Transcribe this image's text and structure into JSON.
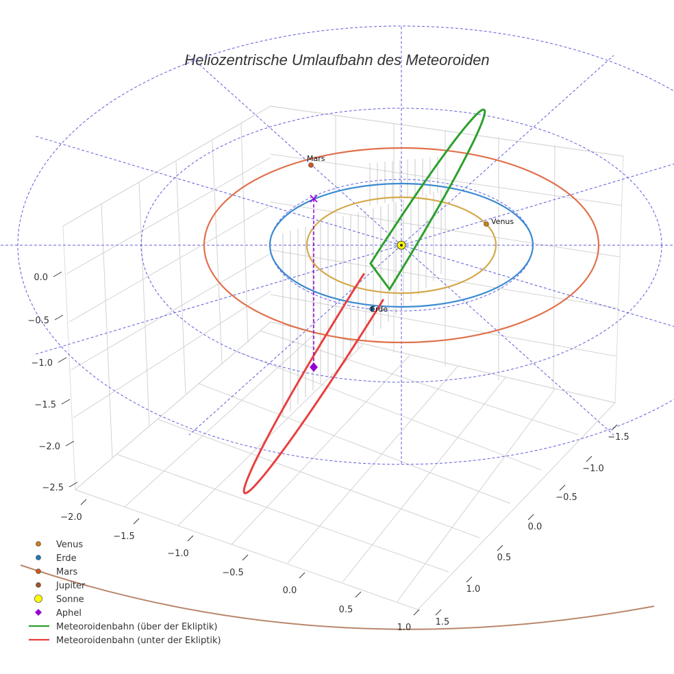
{
  "chart_data": {
    "type": "scatter3d",
    "title": "Heliozentrische Umlaufbahn des Meteoroiden",
    "axes": {
      "x": {
        "range": [
          -2.0,
          1.0
        ],
        "ticks": [
          "−2.0",
          "−1.5",
          "−1.0",
          "−0.5",
          "0.0",
          "0.5",
          "1.0"
        ]
      },
      "y": {
        "range": [
          -1.5,
          1.5
        ],
        "ticks": [
          "−1.5",
          "−1.0",
          "−0.5",
          "0.0",
          "0.5",
          "1.0",
          "1.5"
        ]
      },
      "z": {
        "range": [
          -2.5,
          0.0
        ],
        "ticks": [
          "0.0",
          "−0.5",
          "−1.0",
          "−1.5",
          "−2.0",
          "−2.5"
        ]
      }
    },
    "planets": [
      {
        "name": "Venus",
        "a_au": 0.72,
        "label": "Venus",
        "color": "#c87e1c",
        "orbit_color": "#d4a84a"
      },
      {
        "name": "Erde",
        "a_au": 1.0,
        "label": "Erde",
        "color": "#1f77b4",
        "orbit_color": "#3a8ad1"
      },
      {
        "name": "Mars",
        "a_au": 1.52,
        "label": "Mars",
        "color": "#d2551e",
        "orbit_color": "#e0704a"
      },
      {
        "name": "Jupiter",
        "a_au": 5.2,
        "label": "",
        "color": "#a0522d",
        "orbit_color": "#b9856a"
      }
    ],
    "sun": {
      "name": "Sonne",
      "color": "#ffff00",
      "position": [
        0,
        0,
        0
      ]
    },
    "aphel": {
      "name": "Aphel",
      "color": "#9400d3"
    },
    "meteoroid_orbit": {
      "above": {
        "name": "Meteoroidenbahn (über der Ekliptik)",
        "color": "#2ca02c"
      },
      "below": {
        "name": "Meteoroidenbahn (unter der Ekliptik)",
        "color": "#e84040"
      }
    },
    "legend": [
      {
        "label": "Venus",
        "marker": "circle",
        "color": "#c87e1c"
      },
      {
        "label": "Erde",
        "marker": "circle",
        "color": "#1f77b4"
      },
      {
        "label": "Mars",
        "marker": "circle",
        "color": "#d2551e"
      },
      {
        "label": "Jupiter",
        "marker": "circle",
        "color": "#a0522d"
      },
      {
        "label": "Sonne",
        "marker": "circle-large",
        "color": "#ffff00"
      },
      {
        "label": "Aphel",
        "marker": "diamond",
        "color": "#9400d3"
      },
      {
        "label": "Meteoroidenbahn (über der Ekliptik)",
        "marker": "line",
        "color": "#2ca02c"
      },
      {
        "label": "Meteoroidenbahn (unter der Ekliptik)",
        "marker": "line",
        "color": "#e84040"
      }
    ],
    "legend_position": "bottom-left",
    "grid": true
  }
}
